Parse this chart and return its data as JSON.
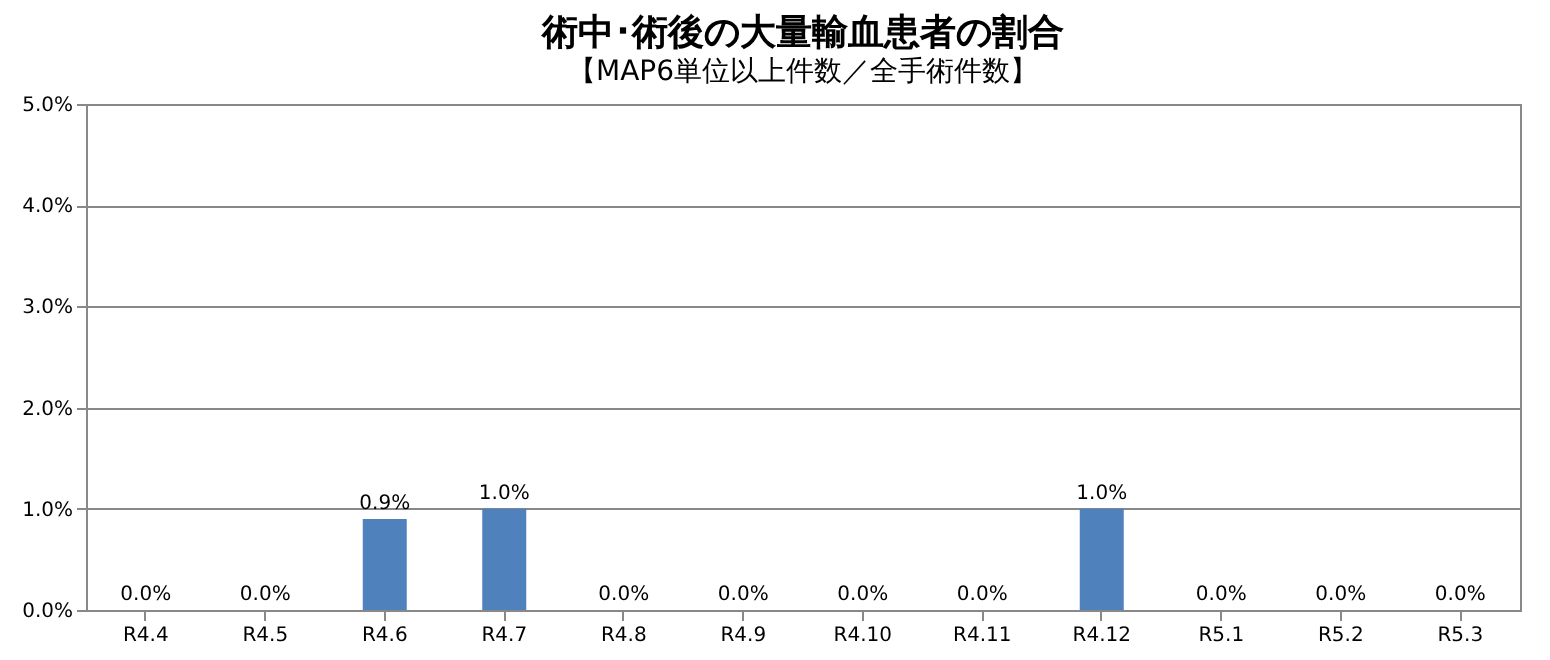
{
  "chart_data": {
    "type": "bar",
    "title": "術中･術後の大量輸血患者の割合",
    "subtitle": "【MAP6単位以上件数／全手術件数】",
    "categories": [
      "R4.4",
      "R4.5",
      "R4.6",
      "R4.7",
      "R4.8",
      "R4.9",
      "R4.10",
      "R4.11",
      "R4.12",
      "R5.1",
      "R5.2",
      "R5.3"
    ],
    "values": [
      0,
      0,
      0.9,
      1.0,
      0,
      0,
      0,
      0,
      1.0,
      0,
      0,
      0
    ],
    "value_labels": [
      "0.0%",
      "0.0%",
      "0.9%",
      "1.0%",
      "0.0%",
      "0.0%",
      "0.0%",
      "0.0%",
      "1.0%",
      "0.0%",
      "0.0%",
      "0.0%"
    ],
    "color": "#4f81bd",
    "ylim": [
      0,
      5
    ],
    "yticks": [
      {
        "value": 0,
        "label": "0.0%"
      },
      {
        "value": 1,
        "label": "1.0%"
      },
      {
        "value": 2,
        "label": "2.0%"
      },
      {
        "value": 3,
        "label": "3.0%"
      },
      {
        "value": 4,
        "label": "4.0%"
      },
      {
        "value": 5,
        "label": "5.0%"
      }
    ],
    "grid": "y"
  }
}
